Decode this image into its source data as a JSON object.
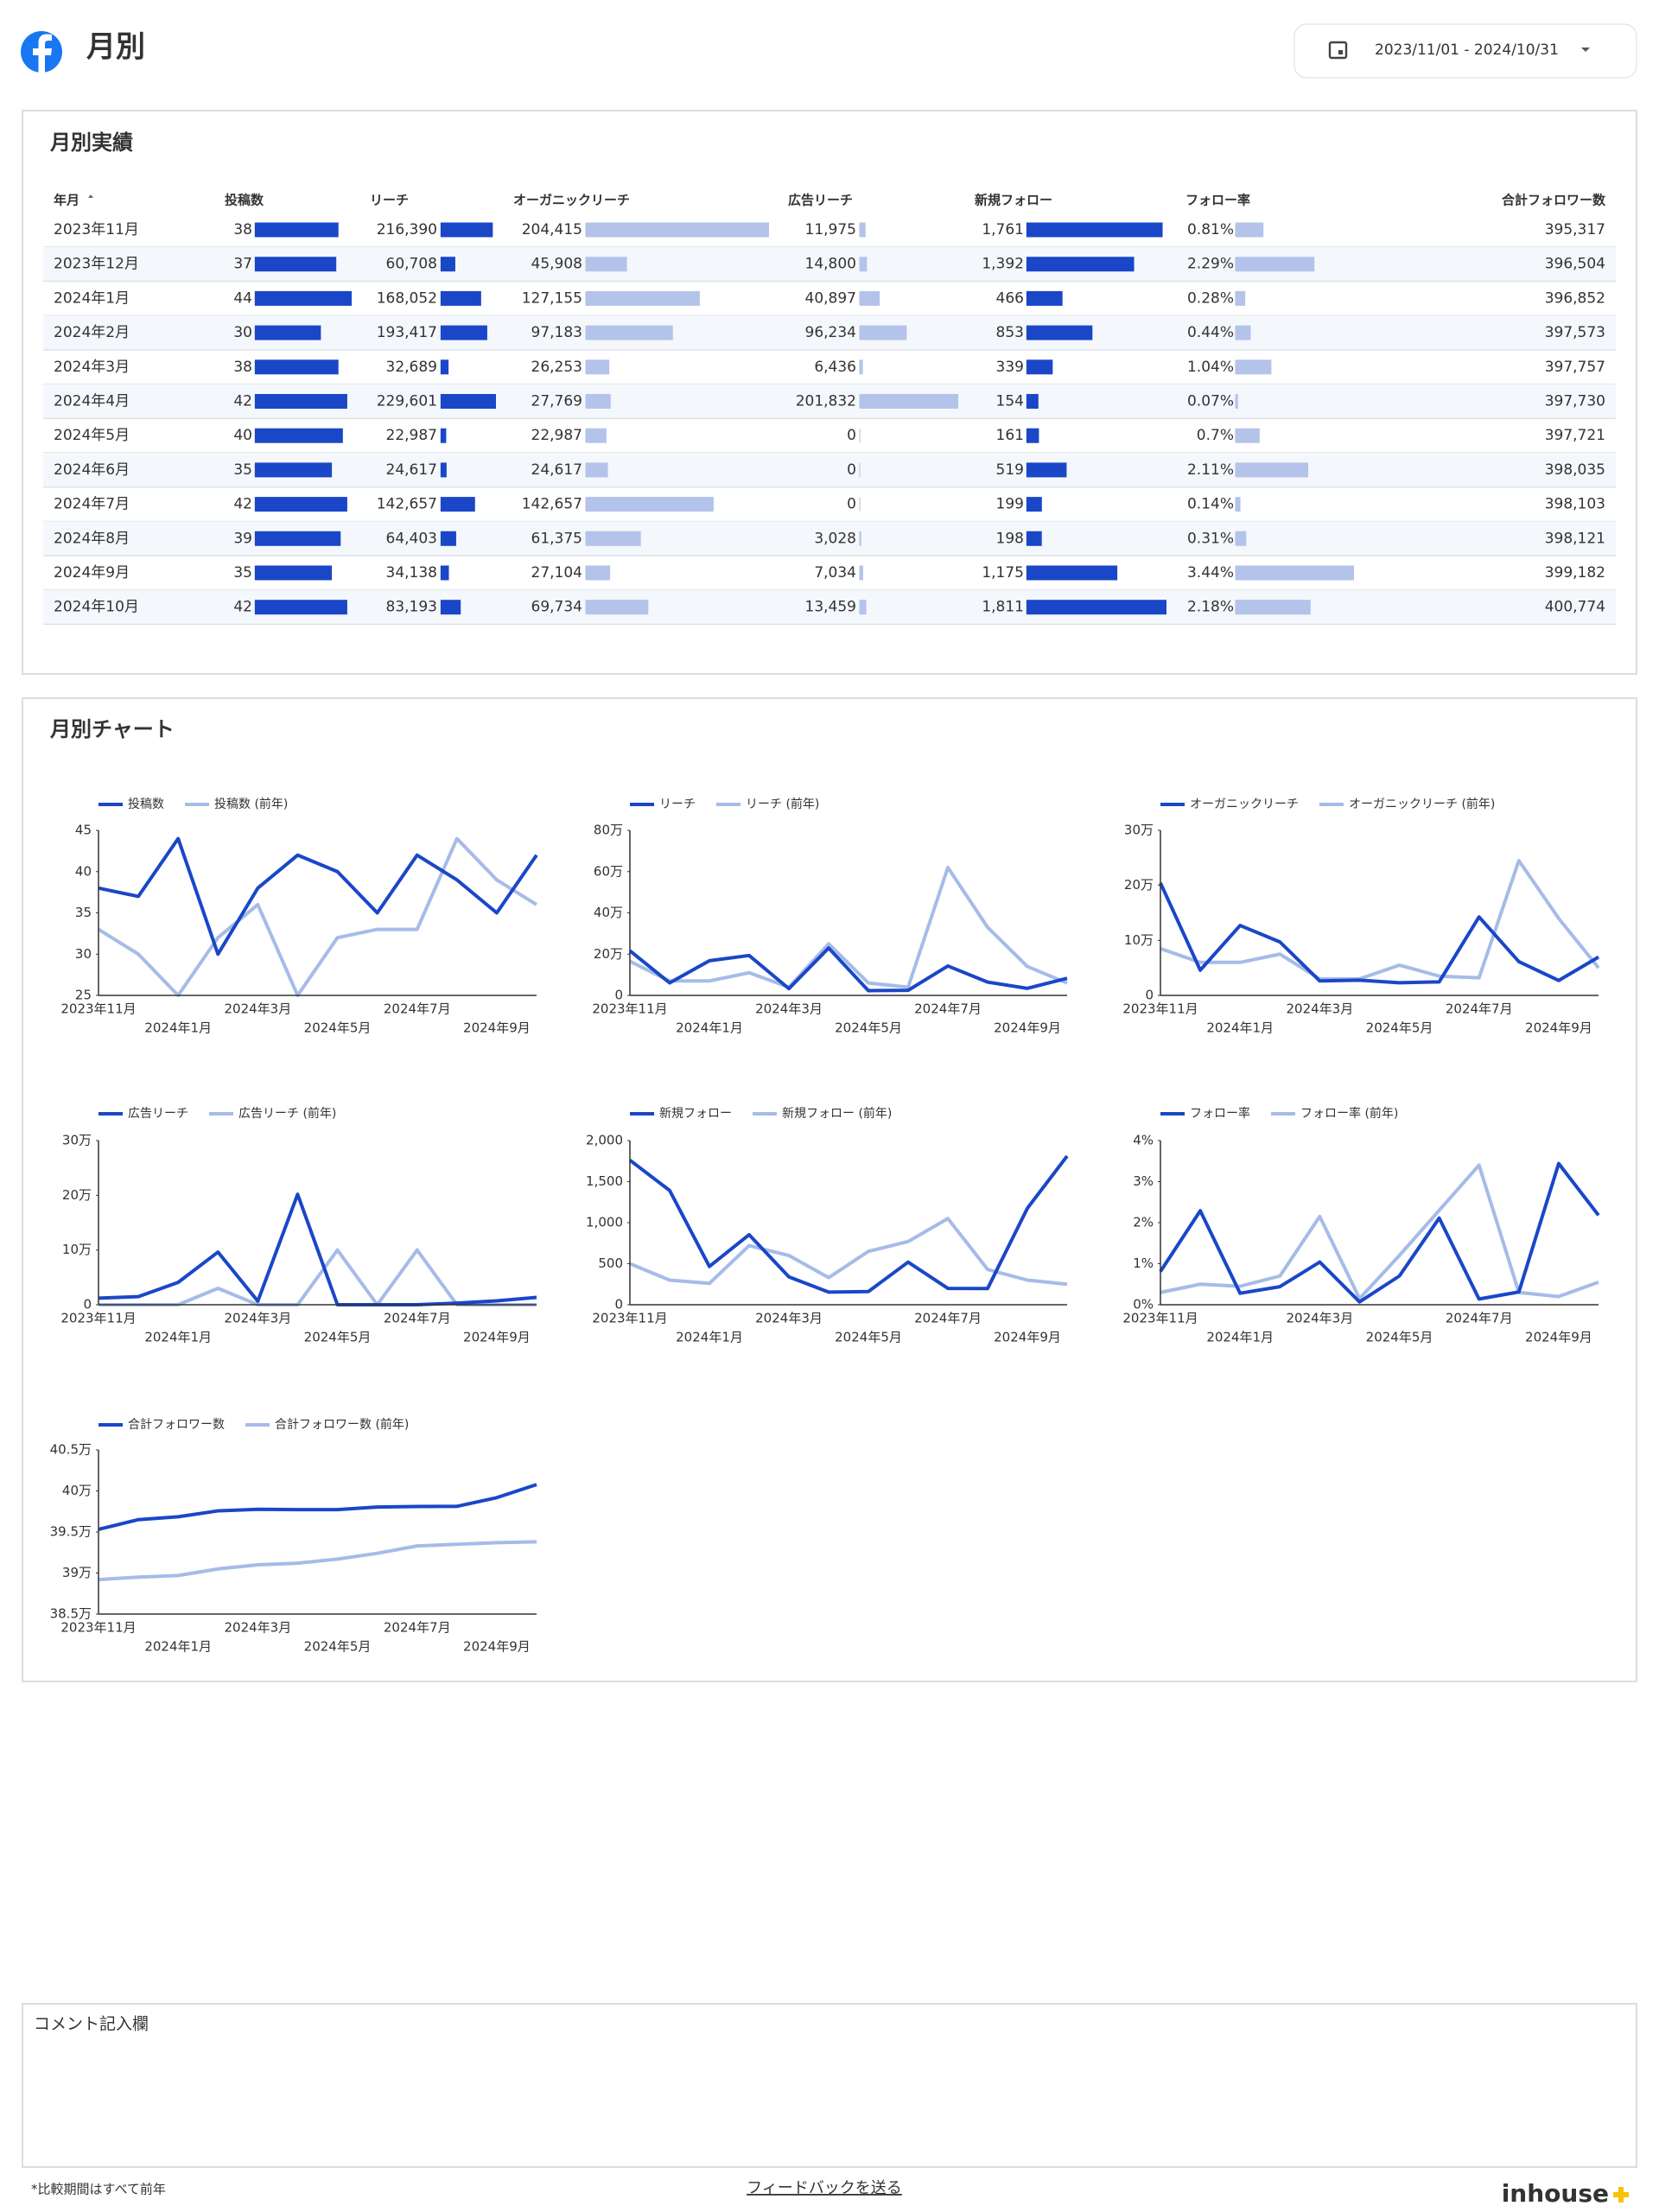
{
  "header": {
    "title": "月別",
    "date_range": "2023/11/01 - 2024/10/31"
  },
  "table": {
    "title": "月別実績",
    "month_header": "年月",
    "months": [
      "2023年11月",
      "2023年12月",
      "2024年1月",
      "2024年2月",
      "2024年3月",
      "2024年4月",
      "2024年5月",
      "2024年6月",
      "2024年7月",
      "2024年8月",
      "2024年9月",
      "2024年10月"
    ],
    "columns": [
      {
        "name": "投稿数",
        "values": [
          38,
          37,
          44,
          30,
          38,
          42,
          40,
          35,
          42,
          39,
          35,
          42
        ],
        "bar_color": "#1a47c8"
      },
      {
        "name": "リーチ",
        "values": [
          216390,
          60708,
          168052,
          193417,
          32689,
          229601,
          22987,
          24617,
          142657,
          64403,
          34138,
          83193
        ],
        "value_labels": [
          "216,390",
          "60,708",
          "168,052",
          "193,417",
          "32,689",
          "229,601",
          "22,987",
          "24,617",
          "142,657",
          "64,403",
          "34,138",
          "83,193"
        ],
        "bar_color": "#1a47c8"
      },
      {
        "name": "オーガニックリーチ",
        "values": [
          204415,
          45908,
          127155,
          97183,
          26253,
          27769,
          22987,
          24617,
          142657,
          61375,
          27104,
          69734
        ],
        "value_labels": [
          "204,415",
          "45,908",
          "127,155",
          "97,183",
          "26,253",
          "27,769",
          "22,987",
          "24,617",
          "142,657",
          "61,375",
          "27,104",
          "69,734"
        ],
        "bar_color": "#b4c3ea"
      },
      {
        "name": "広告リーチ",
        "values": [
          11975,
          14800,
          40897,
          96234,
          6436,
          201832,
          0,
          0,
          0,
          3028,
          7034,
          13459
        ],
        "value_labels": [
          "11,975",
          "14,800",
          "40,897",
          "96,234",
          "6,436",
          "201,832",
          "0",
          "0",
          "0",
          "3,028",
          "7,034",
          "13,459"
        ],
        "bar_color": "#b4c3ea"
      },
      {
        "name": "新規フォロー",
        "values": [
          1761,
          1392,
          466,
          853,
          339,
          154,
          161,
          519,
          199,
          198,
          1175,
          1811
        ],
        "value_labels": [
          "1,761",
          "1,392",
          "466",
          "853",
          "339",
          "154",
          "161",
          "519",
          "199",
          "198",
          "1,175",
          "1,811"
        ],
        "bar_color": "#1a47c8"
      },
      {
        "name": "フォロー率",
        "values": [
          0.81,
          2.29,
          0.28,
          0.44,
          1.04,
          0.07,
          0.7,
          2.11,
          0.14,
          0.31,
          3.44,
          2.18
        ],
        "value_labels": [
          "0.81%",
          "2.29%",
          "0.28%",
          "0.44%",
          "1.04%",
          "0.07%",
          "0.7%",
          "2.11%",
          "0.14%",
          "0.31%",
          "3.44%",
          "2.18%"
        ],
        "bar_color": "#b4c3ea"
      },
      {
        "name": "合計フォロワー数",
        "values": [
          395317,
          396504,
          396852,
          397573,
          397757,
          397730,
          397721,
          398035,
          398103,
          398121,
          399182,
          400774
        ],
        "value_labels": [
          "395,317",
          "396,504",
          "396,852",
          "397,573",
          "397,757",
          "397,730",
          "397,721",
          "398,035",
          "398,103",
          "398,121",
          "399,182",
          "400,774"
        ]
      }
    ]
  },
  "charts_title": "月別チャート",
  "chart_data": [
    {
      "type": "line",
      "categories": [
        "2023年11月",
        null,
        "2024年1月",
        null,
        "2024年3月",
        null,
        "2024年5月",
        null,
        "2024年7月",
        null,
        "2024年9月",
        null
      ],
      "series": [
        {
          "name": "投稿数",
          "color": "#1a47c8",
          "values": [
            38,
            37,
            44,
            30,
            38,
            42,
            40,
            35,
            42,
            39,
            35,
            42
          ]
        },
        {
          "name": "投稿数 (前年)",
          "color": "#a6bbe8",
          "values": [
            33,
            30,
            25,
            32,
            36,
            25,
            32,
            33,
            33,
            44,
            39,
            36
          ]
        }
      ],
      "ylim": [
        25,
        45
      ],
      "yticks": [
        25,
        30,
        35,
        40,
        45
      ]
    },
    {
      "type": "line",
      "categories": [
        "2023年11月",
        null,
        "2024年1月",
        null,
        "2024年3月",
        null,
        "2024年5月",
        null,
        "2024年7月",
        null,
        "2024年9月",
        null
      ],
      "series": [
        {
          "name": "リーチ",
          "color": "#1a47c8",
          "values": [
            216390,
            60708,
            168052,
            193417,
            32689,
            229601,
            22987,
            24617,
            142657,
            64403,
            34138,
            83193
          ]
        },
        {
          "name": "リーチ (前年)",
          "color": "#a6bbe8",
          "values": [
            165000,
            70000,
            70000,
            110000,
            40000,
            250000,
            60000,
            40000,
            620000,
            330000,
            140000,
            60000
          ]
        }
      ],
      "ylim": [
        0,
        800000
      ],
      "yticks": [
        0,
        {
          "value": 200000,
          "label": "20万"
        },
        {
          "value": 400000,
          "label": "40万"
        },
        {
          "value": 600000,
          "label": "60万"
        },
        {
          "value": 800000,
          "label": "80万"
        }
      ]
    },
    {
      "type": "line",
      "categories": [
        "2023年11月",
        null,
        "2024年1月",
        null,
        "2024年3月",
        null,
        "2024年5月",
        null,
        "2024年7月",
        null,
        "2024年9月",
        null
      ],
      "series": [
        {
          "name": "オーガニックリーチ",
          "color": "#1a47c8",
          "values": [
            204415,
            45908,
            127155,
            97183,
            26253,
            27769,
            22987,
            24617,
            142657,
            61375,
            27104,
            69734
          ]
        },
        {
          "name": "オーガニックリーチ (前年)",
          "color": "#a6bbe8",
          "values": [
            85000,
            60000,
            60000,
            75000,
            30000,
            30000,
            55000,
            35000,
            32000,
            245000,
            140000,
            50000
          ]
        }
      ],
      "ylim": [
        0,
        300000
      ],
      "yticks": [
        0,
        {
          "value": 100000,
          "label": "10万"
        },
        {
          "value": 200000,
          "label": "20万"
        },
        {
          "value": 300000,
          "label": "30万"
        }
      ]
    },
    {
      "type": "line",
      "categories": [
        "2023年11月",
        null,
        "2024年1月",
        null,
        "2024年3月",
        null,
        "2024年5月",
        null,
        "2024年7月",
        null,
        "2024年9月",
        null
      ],
      "series": [
        {
          "name": "広告リーチ",
          "color": "#1a47c8",
          "values": [
            11975,
            14800,
            40897,
            96234,
            6436,
            201832,
            0,
            0,
            0,
            3028,
            7034,
            13459
          ]
        },
        {
          "name": "広告リーチ (前年)",
          "color": "#a6bbe8",
          "values": [
            0,
            0,
            0,
            30000,
            0,
            0,
            100000,
            0,
            100000,
            0,
            0,
            0
          ]
        }
      ],
      "ylim": [
        0,
        300000
      ],
      "yticks": [
        0,
        {
          "value": 100000,
          "label": "10万"
        },
        {
          "value": 200000,
          "label": "20万"
        },
        {
          "value": 300000,
          "label": "30万"
        }
      ]
    },
    {
      "type": "line",
      "categories": [
        "2023年11月",
        null,
        "2024年1月",
        null,
        "2024年3月",
        null,
        "2024年5月",
        null,
        "2024年7月",
        null,
        "2024年9月",
        null
      ],
      "series": [
        {
          "name": "新規フォロー",
          "color": "#1a47c8",
          "values": [
            1761,
            1392,
            466,
            853,
            339,
            154,
            161,
            519,
            199,
            198,
            1175,
            1811
          ]
        },
        {
          "name": "新規フォロー (前年)",
          "color": "#a6bbe8",
          "values": [
            500,
            300,
            260,
            720,
            600,
            330,
            650,
            770,
            1050,
            430,
            300,
            250
          ]
        }
      ],
      "ylim": [
        0,
        2000
      ],
      "yticks": [
        0,
        500,
        {
          "value": 1000,
          "label": "1,000"
        },
        {
          "value": 1500,
          "label": "1,500"
        },
        {
          "value": 2000,
          "label": "2,000"
        }
      ]
    },
    {
      "type": "line",
      "categories": [
        "2023年11月",
        null,
        "2024年1月",
        null,
        "2024年3月",
        null,
        "2024年5月",
        null,
        "2024年7月",
        null,
        "2024年9月",
        null
      ],
      "series": [
        {
          "name": "フォロー率",
          "color": "#1a47c8",
          "values": [
            0.81,
            2.29,
            0.28,
            0.44,
            1.04,
            0.07,
            0.7,
            2.11,
            0.14,
            0.31,
            3.44,
            2.18
          ]
        },
        {
          "name": "フォロー率 (前年)",
          "color": "#a6bbe8",
          "values": [
            0.3,
            0.5,
            0.45,
            0.7,
            2.15,
            0.15,
            1.2,
            2.3,
            3.4,
            0.3,
            0.2,
            0.55
          ]
        }
      ],
      "ylim": [
        0,
        4
      ],
      "yticks": [
        {
          "value": 0,
          "label": "0%"
        },
        {
          "value": 1,
          "label": "1%"
        },
        {
          "value": 2,
          "label": "2%"
        },
        {
          "value": 3,
          "label": "3%"
        },
        {
          "value": 4,
          "label": "4%"
        }
      ]
    },
    {
      "type": "line",
      "categories": [
        "2023年11月",
        null,
        "2024年1月",
        null,
        "2024年3月",
        null,
        "2024年5月",
        null,
        "2024年7月",
        null,
        "2024年9月",
        null
      ],
      "series": [
        {
          "name": "合計フォロワー数",
          "color": "#1a47c8",
          "values": [
            395317,
            396504,
            396852,
            397573,
            397757,
            397730,
            397721,
            398035,
            398103,
            398121,
            399182,
            400774
          ]
        },
        {
          "name": "合計フォロワー数 (前年)",
          "color": "#a6bbe8",
          "values": [
            389200,
            389500,
            389700,
            390500,
            391000,
            391200,
            391700,
            392400,
            393300,
            393500,
            393700,
            393800
          ]
        }
      ],
      "ylim": [
        385000,
        405000
      ],
      "yticks": [
        {
          "value": 385000,
          "label": "38.5万"
        },
        {
          "value": 390000,
          "label": "39万"
        },
        {
          "value": 395000,
          "label": "39.5万"
        },
        {
          "value": 400000,
          "label": "40万"
        },
        {
          "value": 405000,
          "label": "40.5万"
        }
      ]
    }
  ],
  "comment": {
    "title": "コメント記入欄"
  },
  "footer": {
    "note": "*比較期間はすべて前年",
    "link": "フィードバックを送る",
    "logo": "inhouse"
  }
}
